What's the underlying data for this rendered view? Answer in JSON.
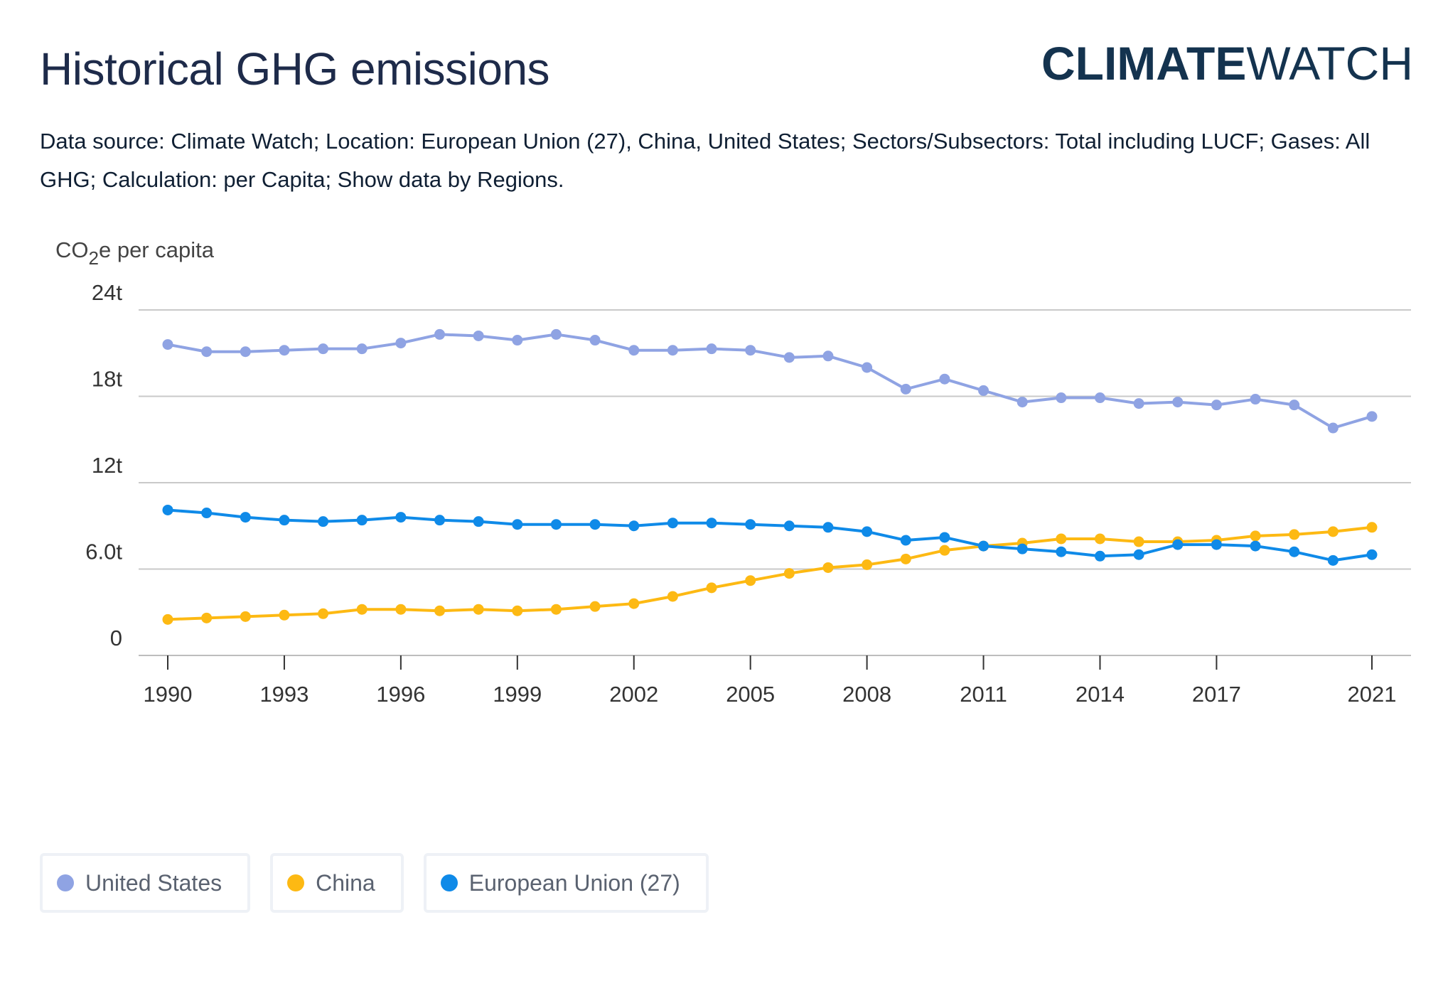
{
  "header": {
    "title": "Historical GHG emissions",
    "logo_bold": "CLIMATE",
    "logo_light": "WATCH"
  },
  "source_text": "Data source: Climate Watch; Location: European Union (27), China, United States; Sectors/Subsectors: Total including LUCF; Gases: All GHG; Calculation: per Capita; Show data by Regions.",
  "axis": {
    "ylabel_pre": "CO",
    "ylabel_sub": "2",
    "ylabel_post": "e per capita"
  },
  "colors": {
    "us": "#8fa3e3",
    "china": "#fdb913",
    "eu": "#0f8ae8",
    "grid": "#c9c9c9",
    "tick_text": "#333333"
  },
  "legend": [
    {
      "label": "United States",
      "color": "#8fa3e3"
    },
    {
      "label": "China",
      "color": "#fdb913"
    },
    {
      "label": "European Union (27)",
      "color": "#0f8ae8"
    }
  ],
  "chart_data": {
    "type": "line",
    "title": "Historical GHG emissions",
    "ylabel": "CO2e per capita",
    "xlabel": "",
    "ylim": [
      0,
      24
    ],
    "yticks": [
      {
        "value": 0,
        "label": "0"
      },
      {
        "value": 6,
        "label": "6.0t"
      },
      {
        "value": 12,
        "label": "12t"
      },
      {
        "value": 18,
        "label": "18t"
      },
      {
        "value": 24,
        "label": "24t"
      }
    ],
    "xticks": [
      1990,
      1993,
      1996,
      1999,
      2002,
      2005,
      2008,
      2011,
      2014,
      2017,
      2021
    ],
    "x": [
      1990,
      1991,
      1992,
      1993,
      1994,
      1995,
      1996,
      1997,
      1998,
      1999,
      2000,
      2001,
      2002,
      2003,
      2004,
      2005,
      2006,
      2007,
      2008,
      2009,
      2010,
      2011,
      2012,
      2013,
      2014,
      2015,
      2016,
      2017,
      2018,
      2019,
      2020,
      2021
    ],
    "series": [
      {
        "name": "United States",
        "color": "#8fa3e3",
        "values": [
          21.6,
          21.1,
          21.1,
          21.2,
          21.3,
          21.3,
          21.7,
          22.3,
          22.2,
          21.9,
          22.3,
          21.9,
          21.2,
          21.2,
          21.3,
          21.2,
          20.7,
          20.8,
          20.0,
          18.5,
          19.2,
          18.4,
          17.6,
          17.9,
          17.9,
          17.5,
          17.6,
          17.4,
          17.8,
          17.4,
          15.8,
          16.6
        ]
      },
      {
        "name": "China",
        "color": "#fdb913",
        "values": [
          2.5,
          2.6,
          2.7,
          2.8,
          2.9,
          3.2,
          3.2,
          3.1,
          3.2,
          3.1,
          3.2,
          3.4,
          3.6,
          4.1,
          4.7,
          5.2,
          5.7,
          6.1,
          6.3,
          6.7,
          7.3,
          7.6,
          7.8,
          8.1,
          8.1,
          7.9,
          7.9,
          8.0,
          8.3,
          8.4,
          8.6,
          8.9
        ]
      },
      {
        "name": "European Union (27)",
        "color": "#0f8ae8",
        "values": [
          10.1,
          9.9,
          9.6,
          9.4,
          9.3,
          9.4,
          9.6,
          9.4,
          9.3,
          9.1,
          9.1,
          9.1,
          9.0,
          9.2,
          9.2,
          9.1,
          9.0,
          8.9,
          8.6,
          8.0,
          8.2,
          7.6,
          7.4,
          7.2,
          6.9,
          7.0,
          7.7,
          7.7,
          7.6,
          7.2,
          6.6,
          7.0
        ]
      }
    ]
  }
}
